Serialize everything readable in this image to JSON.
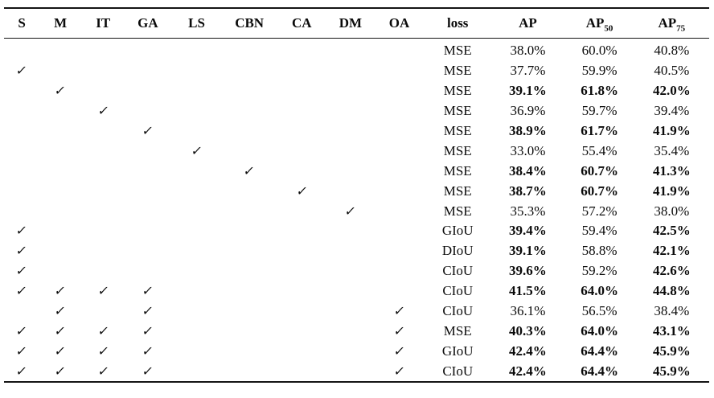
{
  "table": {
    "checkmark_glyph": "✓",
    "text_color": "#0b0b0b",
    "rule_color": "#141414",
    "headers": [
      {
        "text": "S"
      },
      {
        "text": "M"
      },
      {
        "text": "IT"
      },
      {
        "text": "GA"
      },
      {
        "text": "LS"
      },
      {
        "text": "CBN"
      },
      {
        "text": "CA"
      },
      {
        "text": "DM"
      },
      {
        "text": "OA"
      },
      {
        "text": "loss"
      },
      {
        "text": "AP"
      },
      {
        "text": "AP",
        "sub": "50"
      },
      {
        "text": "AP",
        "sub": "75"
      }
    ],
    "rows": [
      {
        "checks": [],
        "loss": "MSE",
        "values": [
          {
            "text": "38.0%",
            "bold": false
          },
          {
            "text": "60.0%",
            "bold": false
          },
          {
            "text": "40.8%",
            "bold": false
          }
        ]
      },
      {
        "checks": [
          "S"
        ],
        "loss": "MSE",
        "values": [
          {
            "text": "37.7%",
            "bold": false
          },
          {
            "text": "59.9%",
            "bold": false
          },
          {
            "text": "40.5%",
            "bold": false
          }
        ]
      },
      {
        "checks": [
          "M"
        ],
        "loss": "MSE",
        "values": [
          {
            "text": "39.1%",
            "bold": true
          },
          {
            "text": "61.8%",
            "bold": true
          },
          {
            "text": "42.0%",
            "bold": true
          }
        ]
      },
      {
        "checks": [
          "IT"
        ],
        "loss": "MSE",
        "values": [
          {
            "text": "36.9%",
            "bold": false
          },
          {
            "text": "59.7%",
            "bold": false
          },
          {
            "text": "39.4%",
            "bold": false
          }
        ]
      },
      {
        "checks": [
          "GA"
        ],
        "loss": "MSE",
        "values": [
          {
            "text": "38.9%",
            "bold": true
          },
          {
            "text": "61.7%",
            "bold": true
          },
          {
            "text": "41.9%",
            "bold": true
          }
        ]
      },
      {
        "checks": [
          "LS"
        ],
        "loss": "MSE",
        "values": [
          {
            "text": "33.0%",
            "bold": false
          },
          {
            "text": "55.4%",
            "bold": false
          },
          {
            "text": "35.4%",
            "bold": false
          }
        ]
      },
      {
        "checks": [
          "CBN"
        ],
        "loss": "MSE",
        "values": [
          {
            "text": "38.4%",
            "bold": true
          },
          {
            "text": "60.7%",
            "bold": true
          },
          {
            "text": "41.3%",
            "bold": true
          }
        ]
      },
      {
        "checks": [
          "CA"
        ],
        "loss": "MSE",
        "values": [
          {
            "text": "38.7%",
            "bold": true
          },
          {
            "text": "60.7%",
            "bold": true
          },
          {
            "text": "41.9%",
            "bold": true
          }
        ]
      },
      {
        "checks": [
          "DM"
        ],
        "loss": "MSE",
        "values": [
          {
            "text": "35.3%",
            "bold": false
          },
          {
            "text": "57.2%",
            "bold": false
          },
          {
            "text": "38.0%",
            "bold": false
          }
        ]
      },
      {
        "checks": [
          "S"
        ],
        "loss": "GIoU",
        "values": [
          {
            "text": "39.4%",
            "bold": true
          },
          {
            "text": "59.4%",
            "bold": false
          },
          {
            "text": "42.5%",
            "bold": true
          }
        ]
      },
      {
        "checks": [
          "S"
        ],
        "loss": "DIoU",
        "values": [
          {
            "text": "39.1%",
            "bold": true
          },
          {
            "text": "58.8%",
            "bold": false
          },
          {
            "text": "42.1%",
            "bold": true
          }
        ]
      },
      {
        "checks": [
          "S"
        ],
        "loss": "CIoU",
        "values": [
          {
            "text": "39.6%",
            "bold": true
          },
          {
            "text": "59.2%",
            "bold": false
          },
          {
            "text": "42.6%",
            "bold": true
          }
        ]
      },
      {
        "checks": [
          "S",
          "M",
          "IT",
          "GA"
        ],
        "loss": "CIoU",
        "values": [
          {
            "text": "41.5%",
            "bold": true
          },
          {
            "text": "64.0%",
            "bold": true
          },
          {
            "text": "44.8%",
            "bold": true
          }
        ]
      },
      {
        "checks": [
          "M",
          "GA",
          "OA"
        ],
        "loss": "CIoU",
        "values": [
          {
            "text": "36.1%",
            "bold": false
          },
          {
            "text": "56.5%",
            "bold": false
          },
          {
            "text": "38.4%",
            "bold": false
          }
        ]
      },
      {
        "checks": [
          "S",
          "M",
          "IT",
          "GA",
          "OA"
        ],
        "loss": "MSE",
        "values": [
          {
            "text": "40.3%",
            "bold": true
          },
          {
            "text": "64.0%",
            "bold": true
          },
          {
            "text": "43.1%",
            "bold": true
          }
        ]
      },
      {
        "checks": [
          "S",
          "M",
          "IT",
          "GA",
          "OA"
        ],
        "loss": "GIoU",
        "values": [
          {
            "text": "42.4%",
            "bold": true
          },
          {
            "text": "64.4%",
            "bold": true
          },
          {
            "text": "45.9%",
            "bold": true
          }
        ]
      },
      {
        "checks": [
          "S",
          "M",
          "IT",
          "GA",
          "OA"
        ],
        "loss": "CIoU",
        "values": [
          {
            "text": "42.4%",
            "bold": true
          },
          {
            "text": "64.4%",
            "bold": true
          },
          {
            "text": "45.9%",
            "bold": true
          }
        ]
      }
    ]
  }
}
